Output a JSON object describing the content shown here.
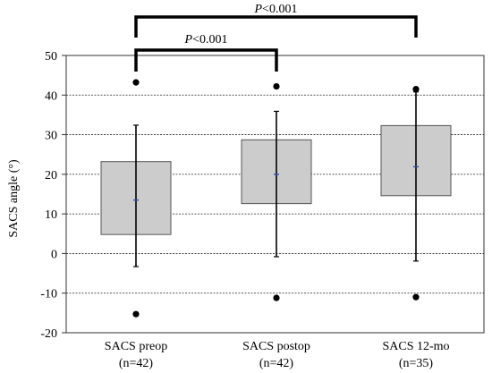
{
  "chart_data": {
    "type": "box",
    "ylabel": "SACS angle (°)",
    "ylim": [
      -20,
      50
    ],
    "yticks": [
      -20,
      -10,
      0,
      10,
      20,
      30,
      40,
      50
    ],
    "grid": true,
    "categories": [
      {
        "line1": "SACS preop",
        "line2": "(n=42)"
      },
      {
        "line1": "SACS postop",
        "line2": "(n=42)"
      },
      {
        "line1": "SACS 12-mo",
        "line2": "(n=35)"
      }
    ],
    "boxes": [
      {
        "q1": 4.8,
        "q3": 23.2,
        "mean": 13.5,
        "whisker_low": -3.3,
        "whisker_high": 32.4,
        "outliers": [
          43.2,
          -15.3
        ]
      },
      {
        "q1": 12.6,
        "q3": 28.7,
        "mean": 20.0,
        "whisker_low": -0.8,
        "whisker_high": 35.9,
        "outliers": [
          42.2,
          -11.2
        ]
      },
      {
        "q1": 14.6,
        "q3": 32.3,
        "mean": 21.9,
        "whisker_low": -1.9,
        "whisker_high": 40.8,
        "outliers": [
          41.5,
          -11.0
        ]
      }
    ],
    "significance": [
      {
        "from": 0,
        "to": 1,
        "p_italic": "P",
        "p_value": "<0.001"
      },
      {
        "from": 0,
        "to": 2,
        "p_italic": "P",
        "p_value": "<0.001"
      }
    ],
    "colors": {
      "box_fill": "#cccccc",
      "box_stroke": "#555555",
      "mean_marker": "#2f4fb4",
      "grid": "#222222"
    }
  }
}
